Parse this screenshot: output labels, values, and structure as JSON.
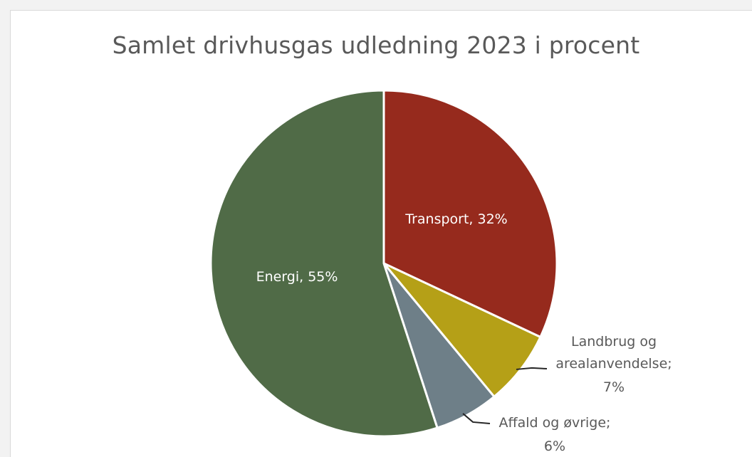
{
  "chart_data": {
    "type": "pie",
    "title": "Samlet drivhusgas udledning 2023 i procent",
    "slices": [
      {
        "label": "Transport",
        "value": 32,
        "display": "Transport, 32%",
        "color": "#962a1d",
        "label_color": "#ffffff"
      },
      {
        "label": "Landbrug og arealanvendelse",
        "value": 7,
        "display_lines": [
          "Landbrug og",
          "arealanvendelse;",
          "7%"
        ],
        "color": "#b5a017",
        "label_color": "#595959"
      },
      {
        "label": "Affald og øvrige",
        "value": 6,
        "display_lines": [
          "Affald og øvrige;",
          "6%"
        ],
        "color": "#6e7f88",
        "label_color": "#595959"
      },
      {
        "label": "Energi",
        "value": 55,
        "display": "Energi, 55%",
        "color": "#506b47",
        "label_color": "#ffffff"
      }
    ],
    "start_angle_deg": 0,
    "direction": "clockwise",
    "legend": "none"
  }
}
